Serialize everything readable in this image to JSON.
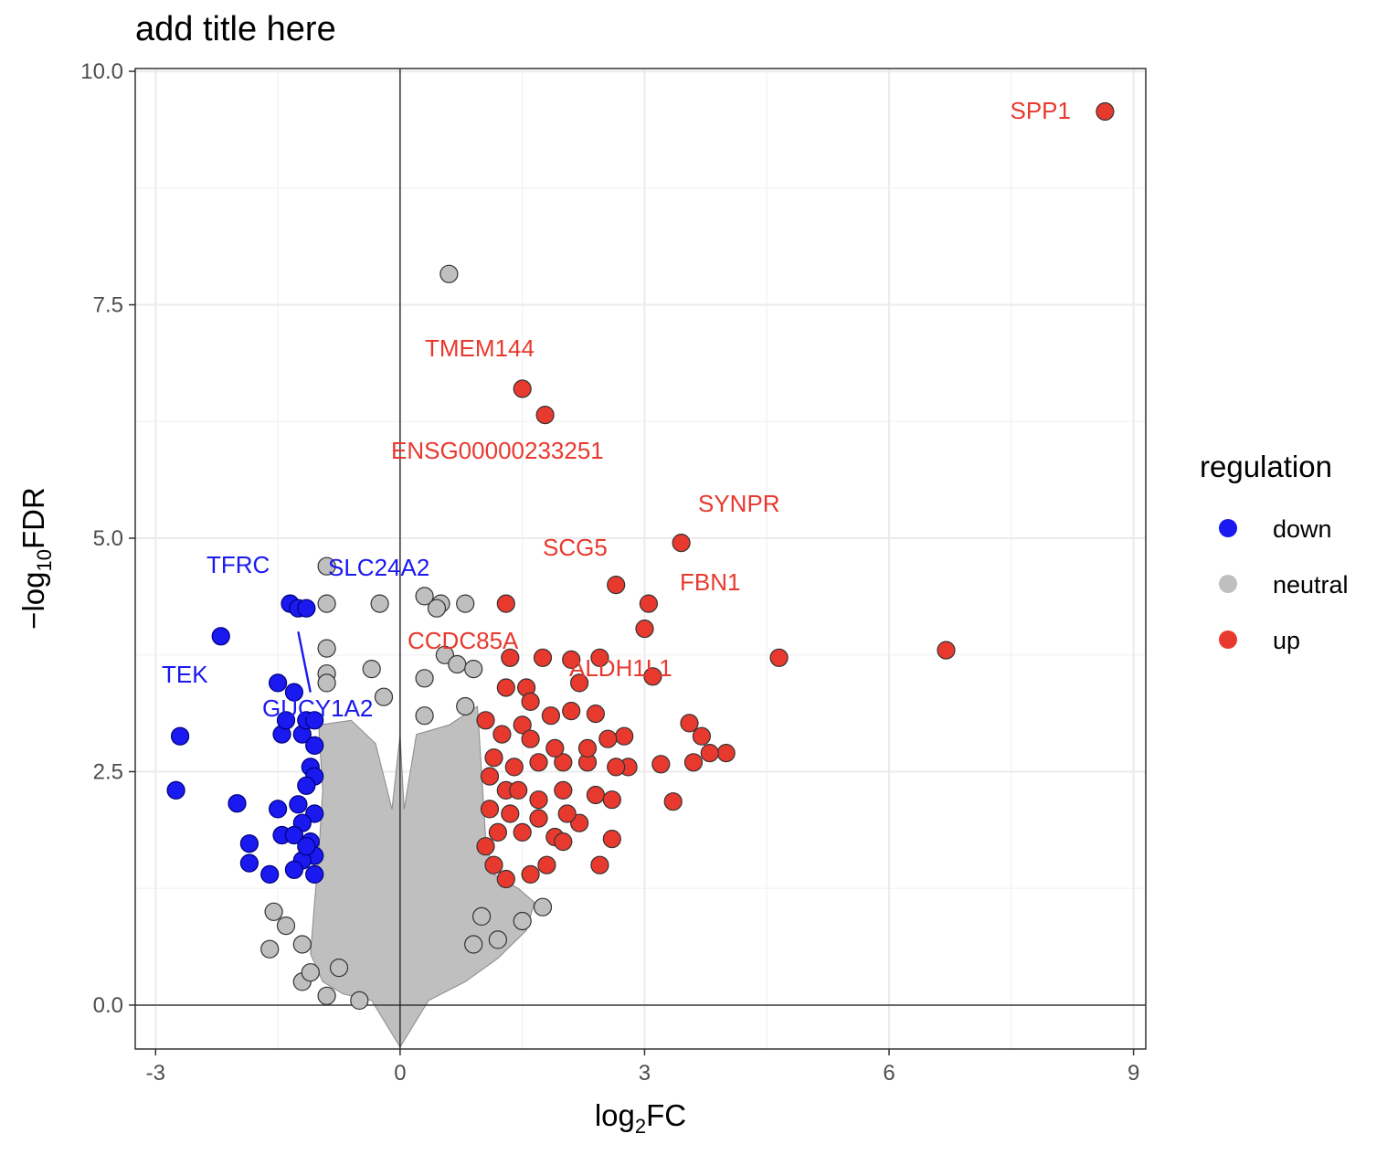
{
  "chart_data": {
    "type": "scatter",
    "title": "add title here",
    "xlabel_base": "log",
    "xlabel_sub": "2",
    "xlabel_rest": "FC",
    "ylabel_prefix": "−log",
    "ylabel_sub": "10",
    "ylabel_rest": "FDR",
    "xlim": [
      -3.25,
      9.15
    ],
    "ylim": [
      -0.47,
      10.03
    ],
    "x_ticks": [
      -3,
      0,
      3,
      6,
      9
    ],
    "y_ticks": [
      0.0,
      2.5,
      5.0,
      7.5,
      10.0
    ],
    "x_tick_labels": [
      "-3",
      "0",
      "3",
      "6",
      "9"
    ],
    "y_tick_labels": [
      "0.0",
      "2.5",
      "5.0",
      "7.5",
      "10.0"
    ],
    "grid": true,
    "reference_lines": {
      "x": 0,
      "y": 0
    },
    "legend": {
      "title": "regulation",
      "placement": "right",
      "entries": [
        {
          "name": "down",
          "color": "#1919f0"
        },
        {
          "name": "neutral",
          "color": "#bfbfbf"
        },
        {
          "name": "up",
          "color": "#e8392e"
        }
      ]
    },
    "colors": {
      "down": "#1919f0",
      "neutral": "#bfbfbf",
      "up": "#e8392e",
      "up_label": "#e8392e",
      "down_label": "#1919f0"
    },
    "series": [
      {
        "name": "up",
        "points": [
          [
            8.65,
            9.57
          ],
          [
            6.7,
            3.8
          ],
          [
            4.65,
            3.72
          ],
          [
            3.45,
            4.95
          ],
          [
            3.05,
            4.3
          ],
          [
            3.0,
            4.03
          ],
          [
            2.65,
            4.5
          ],
          [
            1.5,
            6.6
          ],
          [
            1.78,
            6.32
          ],
          [
            1.3,
            4.3
          ],
          [
            1.35,
            3.72
          ],
          [
            1.75,
            3.72
          ],
          [
            2.1,
            3.7
          ],
          [
            2.45,
            3.72
          ],
          [
            3.1,
            3.52
          ],
          [
            2.2,
            3.45
          ],
          [
            1.55,
            3.4
          ],
          [
            1.3,
            3.4
          ],
          [
            2.1,
            3.15
          ],
          [
            2.4,
            3.12
          ],
          [
            1.85,
            3.1
          ],
          [
            3.55,
            3.02
          ],
          [
            3.7,
            2.88
          ],
          [
            4.0,
            2.7
          ],
          [
            3.8,
            2.7
          ],
          [
            3.6,
            2.6
          ],
          [
            3.2,
            2.58
          ],
          [
            2.8,
            2.55
          ],
          [
            2.65,
            2.55
          ],
          [
            2.75,
            2.88
          ],
          [
            2.55,
            2.85
          ],
          [
            2.3,
            2.6
          ],
          [
            2.0,
            2.6
          ],
          [
            1.7,
            2.6
          ],
          [
            1.4,
            2.55
          ],
          [
            2.4,
            2.25
          ],
          [
            2.6,
            2.2
          ],
          [
            3.35,
            2.18
          ],
          [
            2.0,
            2.3
          ],
          [
            1.7,
            2.2
          ],
          [
            1.3,
            2.3
          ],
          [
            1.1,
            2.1
          ],
          [
            1.2,
            1.85
          ],
          [
            1.5,
            1.85
          ],
          [
            1.9,
            1.8
          ],
          [
            2.2,
            1.95
          ],
          [
            2.0,
            1.75
          ],
          [
            2.6,
            1.78
          ],
          [
            2.45,
            1.5
          ],
          [
            1.8,
            1.5
          ],
          [
            1.6,
            1.4
          ],
          [
            1.3,
            1.35
          ],
          [
            1.15,
            1.5
          ],
          [
            1.05,
            1.7
          ],
          [
            1.25,
            2.9
          ],
          [
            1.05,
            3.05
          ],
          [
            1.5,
            3.0
          ],
          [
            1.6,
            2.85
          ],
          [
            1.9,
            2.75
          ],
          [
            2.3,
            2.75
          ],
          [
            1.45,
            2.3
          ],
          [
            1.15,
            2.65
          ],
          [
            1.35,
            2.05
          ],
          [
            1.7,
            2.0
          ],
          [
            2.05,
            2.05
          ],
          [
            1.1,
            2.45
          ],
          [
            1.6,
            3.25
          ]
        ]
      },
      {
        "name": "down",
        "points": [
          [
            -2.75,
            2.3
          ],
          [
            -2.7,
            2.88
          ],
          [
            -2.2,
            3.95
          ],
          [
            -2.0,
            2.16
          ],
          [
            -1.85,
            1.73
          ],
          [
            -1.85,
            1.52
          ],
          [
            -1.6,
            1.4
          ],
          [
            -1.5,
            3.45
          ],
          [
            -1.5,
            2.1
          ],
          [
            -1.45,
            1.82
          ],
          [
            -1.35,
            4.3
          ],
          [
            -1.25,
            4.25
          ],
          [
            -1.15,
            4.25
          ],
          [
            -1.3,
            3.35
          ],
          [
            -1.45,
            2.9
          ],
          [
            -1.4,
            3.05
          ],
          [
            -1.2,
            2.9
          ],
          [
            -1.15,
            3.05
          ],
          [
            -1.05,
            3.05
          ],
          [
            -1.1,
            2.55
          ],
          [
            -1.05,
            2.45
          ],
          [
            -1.15,
            2.35
          ],
          [
            -1.05,
            2.05
          ],
          [
            -1.2,
            1.95
          ],
          [
            -1.3,
            1.82
          ],
          [
            -1.1,
            1.75
          ],
          [
            -1.05,
            1.6
          ],
          [
            -1.2,
            1.55
          ],
          [
            -1.3,
            1.45
          ],
          [
            -1.05,
            1.4
          ],
          [
            -1.05,
            2.78
          ],
          [
            -1.25,
            2.15
          ],
          [
            -1.15,
            1.7
          ]
        ]
      },
      {
        "name": "neutral",
        "points": [
          [
            0.6,
            7.83
          ],
          [
            -0.9,
            4.7
          ],
          [
            -0.9,
            4.3
          ],
          [
            -0.25,
            4.3
          ],
          [
            0.3,
            4.38
          ],
          [
            0.5,
            4.3
          ],
          [
            0.8,
            4.3
          ],
          [
            0.45,
            4.25
          ],
          [
            -0.9,
            3.82
          ],
          [
            -0.35,
            3.6
          ],
          [
            -0.9,
            3.55
          ],
          [
            -0.9,
            3.45
          ],
          [
            0.55,
            3.75
          ],
          [
            0.7,
            3.65
          ],
          [
            0.3,
            3.5
          ],
          [
            0.9,
            3.6
          ],
          [
            -1.55,
            1.0
          ],
          [
            -1.4,
            0.85
          ],
          [
            -1.6,
            0.6
          ],
          [
            -1.2,
            0.65
          ],
          [
            -1.2,
            0.25
          ],
          [
            -1.1,
            0.35
          ],
          [
            -0.9,
            0.1
          ],
          [
            -0.5,
            0.05
          ],
          [
            -0.75,
            0.4
          ],
          [
            1.75,
            1.05
          ],
          [
            1.5,
            0.9
          ],
          [
            1.2,
            0.7
          ],
          [
            1.0,
            0.95
          ],
          [
            0.9,
            0.65
          ],
          [
            -0.2,
            3.3
          ],
          [
            0.3,
            3.1
          ],
          [
            0.8,
            3.2
          ]
        ]
      }
    ],
    "annotations": [
      {
        "text": "SPP1",
        "x": 8.65,
        "y": 9.57,
        "group": "up"
      },
      {
        "text": "TMEM144",
        "x": 1.5,
        "y": 6.6,
        "group": "up"
      },
      {
        "text": "ENSG00000233251",
        "x": 1.78,
        "y": 6.32,
        "group": "up"
      },
      {
        "text": "SYNPR",
        "x": 3.45,
        "y": 4.95,
        "group": "up"
      },
      {
        "text": "SCG5",
        "x": 2.65,
        "y": 4.5,
        "group": "up"
      },
      {
        "text": "FBN1",
        "x": 3.05,
        "y": 4.3,
        "group": "up"
      },
      {
        "text": "CCDC85A",
        "x": 1.35,
        "y": 3.72,
        "group": "up"
      },
      {
        "text": "ALDH1L1",
        "x": 3.1,
        "y": 3.52,
        "group": "up"
      },
      {
        "text": "TFRC",
        "x": -1.35,
        "y": 4.3,
        "group": "down"
      },
      {
        "text": "SLC24A2",
        "x": -1.15,
        "y": 4.25,
        "group": "down"
      },
      {
        "text": "TEK",
        "x": -2.2,
        "y": 3.95,
        "group": "down"
      },
      {
        "text": "GUCY1A2",
        "x": -1.25,
        "y": 4.25,
        "group": "down"
      }
    ]
  }
}
